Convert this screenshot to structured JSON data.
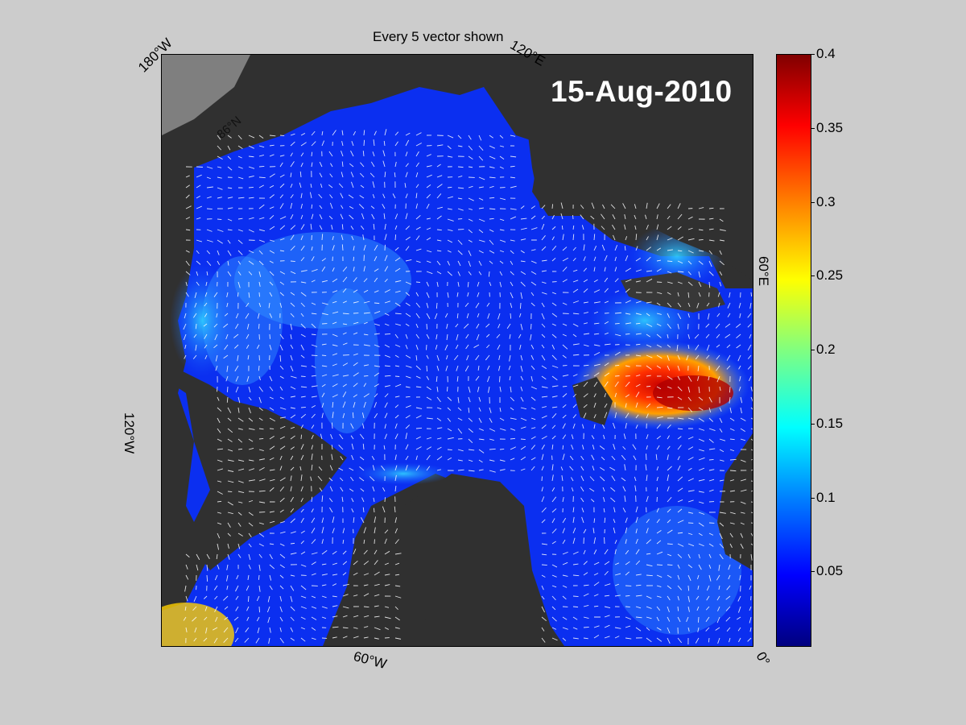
{
  "title": "Every 5 vector shown",
  "date": "15-Aug-2010",
  "lon_labels": {
    "w180": "180°W",
    "e120": "120°E",
    "e60": "60°E",
    "w120": "120°W",
    "w60": "60°W",
    "zero": "0°"
  },
  "lat_label": "86°N",
  "colorbar": {
    "min": 0,
    "max": 0.4,
    "ticks": [
      "0.4",
      "0.35",
      "0.3",
      "0.25",
      "0.2",
      "0.15",
      "0.1",
      "0.05"
    ],
    "colormap": "jet"
  },
  "colors": {
    "background": "#cccccc",
    "land": "#303030",
    "land_light": "#808080",
    "ocean_low": "#0a2ee8",
    "ocean_mid": "#2f8cff",
    "ocean_high": "#ff2000"
  }
}
